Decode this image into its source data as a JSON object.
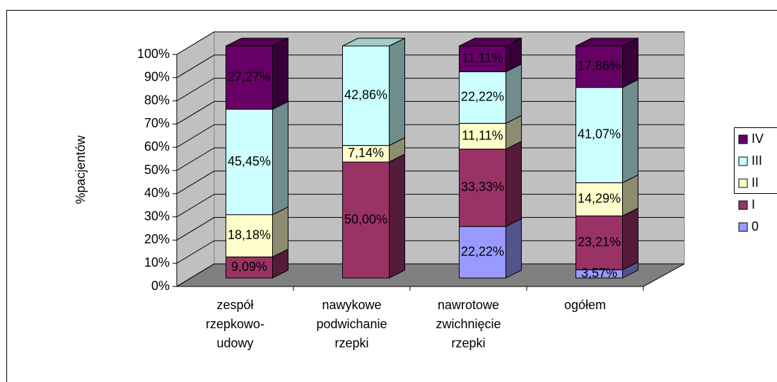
{
  "chart_data": {
    "type": "bar",
    "stacked": true,
    "y_label": "%pacjentów",
    "categories": [
      "zespół rzepkowo-udowy",
      "nawykowe podwichanie rzepki",
      "nawrotowe zwichnięcie rzepki",
      "ogółem"
    ],
    "series": [
      {
        "name": "0",
        "color": "#9999ff",
        "values": [
          null,
          null,
          22.22,
          3.57
        ],
        "value_labels": [
          null,
          null,
          "22,22%",
          "3,57%"
        ]
      },
      {
        "name": "I",
        "color": "#993366",
        "values": [
          9.09,
          50.0,
          33.33,
          23.21
        ],
        "value_labels": [
          "9,09%",
          "50,00%",
          "33,33%",
          "23,21%"
        ]
      },
      {
        "name": "II",
        "color": "#ffffcc",
        "values": [
          18.18,
          7.14,
          11.11,
          14.29
        ],
        "value_labels": [
          "18,18%",
          "7,14%",
          "11,11%",
          "14,29%"
        ]
      },
      {
        "name": "III",
        "color": "#ccffff",
        "values": [
          45.45,
          42.86,
          22.22,
          41.07
        ],
        "value_labels": [
          "45,45%",
          "42,86%",
          "22,22%",
          "41,07%"
        ]
      },
      {
        "name": "IV",
        "color": "#660066",
        "values": [
          27.27,
          null,
          11.11,
          17.86
        ],
        "value_labels": [
          "27,27%",
          null,
          "11,11%",
          "17,86%"
        ]
      }
    ],
    "ylim": [
      0,
      100
    ],
    "yticks": [
      {
        "value": 0,
        "label": "0%"
      },
      {
        "value": 10,
        "label": "10%"
      },
      {
        "value": 20,
        "label": "20%"
      },
      {
        "value": 30,
        "label": "30%"
      },
      {
        "value": 40,
        "label": "40%"
      },
      {
        "value": 50,
        "label": "50%"
      },
      {
        "value": 60,
        "label": "60%"
      },
      {
        "value": 70,
        "label": "70%"
      },
      {
        "value": 80,
        "label": "80%"
      },
      {
        "value": 90,
        "label": "90%"
      },
      {
        "value": 100,
        "label": "100%"
      }
    ],
    "grid": true,
    "legend": "right"
  }
}
